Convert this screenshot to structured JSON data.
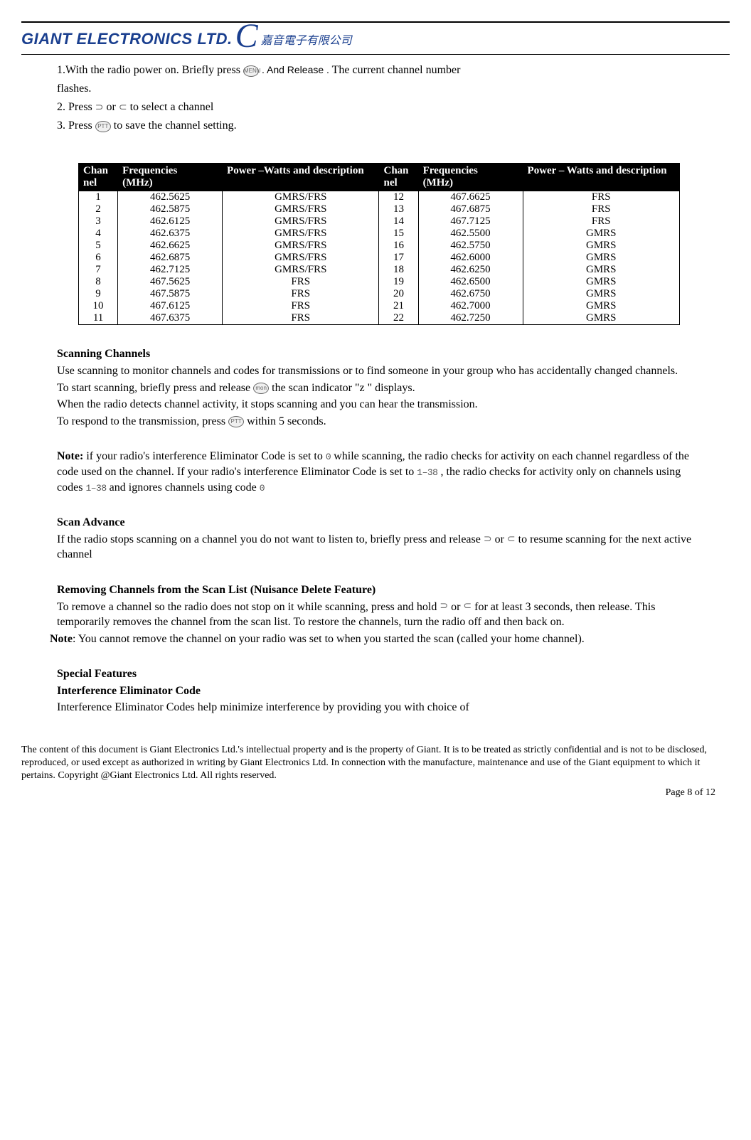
{
  "header": {
    "company_en": "GIANT ELECTRONICS LTD.",
    "company_zh": "嘉音電子有限公司"
  },
  "instructions": {
    "line1_a": "1.With the radio power on. Briefly press ",
    "line1_b": ". And Release .",
    "line1_c": "The current channel number",
    "line1_d": "flashes.",
    "line2_a": "2. Press ",
    "line2_b": "or ",
    "line2_c": " to select a channel",
    "line3_a": "3. Press ",
    "line3_b": " to save the channel setting.",
    "icon_menu": "MENU",
    "icon_ptt": "PTT"
  },
  "table": {
    "headers": {
      "channel": "Chan\nnel",
      "freq": "Frequencies\n(MHz)",
      "power": "Power –Watts and description",
      "channel2": "Chan\nnel",
      "freq2": "Frequencies\n(MHz)",
      "power2": "Power – Watts and description"
    },
    "rows": [
      {
        "c1": "1",
        "f1": "462.5625",
        "p1": "GMRS/FRS",
        "c2": "12",
        "f2": "467.6625",
        "p2": "FRS"
      },
      {
        "c1": "2",
        "f1": "462.5875",
        "p1": "GMRS/FRS",
        "c2": "13",
        "f2": "467.6875",
        "p2": "FRS"
      },
      {
        "c1": "3",
        "f1": "462.6125",
        "p1": "GMRS/FRS",
        "c2": "14",
        "f2": "467.7125",
        "p2": "FRS"
      },
      {
        "c1": "4",
        "f1": "462.6375",
        "p1": "GMRS/FRS",
        "c2": "15",
        "f2": "462.5500",
        "p2": "GMRS"
      },
      {
        "c1": "5",
        "f1": "462.6625",
        "p1": "GMRS/FRS",
        "c2": "16",
        "f2": "462.5750",
        "p2": "GMRS"
      },
      {
        "c1": "6",
        "f1": "462.6875",
        "p1": "GMRS/FRS",
        "c2": "17",
        "f2": "462.6000",
        "p2": "GMRS"
      },
      {
        "c1": "7",
        "f1": "462.7125",
        "p1": "GMRS/FRS",
        "c2": "18",
        "f2": "462.6250",
        "p2": "GMRS"
      },
      {
        "c1": "8",
        "f1": "467.5625",
        "p1": "FRS",
        "c2": "19",
        "f2": "462.6500",
        "p2": "GMRS"
      },
      {
        "c1": "9",
        "f1": "467.5875",
        "p1": "FRS",
        "c2": "20",
        "f2": "462.6750",
        "p2": "GMRS"
      },
      {
        "c1": "10",
        "f1": "467.6125",
        "p1": "FRS",
        "c2": "21",
        "f2": "462.7000",
        "p2": "GMRS"
      },
      {
        "c1": "11",
        "f1": "467.6375",
        "p1": "FRS",
        "c2": "22",
        "f2": "462.7250",
        "p2": "GMRS"
      }
    ]
  },
  "scanning": {
    "title": "Scanning Channels",
    "p1": "Use scanning to monitor channels and codes for transmissions or to find someone in your group who has accidentally changed channels.",
    "p2a": "To start scanning, briefly press and release ",
    "p2b": " the scan indicator \"z \" displays.",
    "p3": "When the radio detects channel activity, it stops scanning and you can hear the transmission.",
    "p4a": "To respond to the transmission, press",
    "p4b": " within 5 seconds.",
    "icon_mon": "mon",
    "icon_ptt": "PTT"
  },
  "note1": {
    "label": "Note:",
    "p1a": " if your radio's interference Eliminator Code is set to",
    "p1b": " while scanning, the radio checks for activity on each channel regardless of the code used on the channel. If your radio's interference Eliminator Code is set to ",
    "p1c": ", the radio checks for activity only on channels using codes ",
    "p1d": " and ignores channels using code ",
    "seg1": "0",
    "seg2": "1–38",
    "seg3": "1–38",
    "seg4": "0"
  },
  "scanadvance": {
    "title": "Scan Advance",
    "p1a": "If the radio stops scanning on a channel you do not want to listen to, briefly press and release ",
    "p1b": "or ",
    "p1c": " to resume scanning for the next active channel"
  },
  "removing": {
    "title": "Removing Channels from the Scan List (Nuisance Delete Feature)",
    "p1a": "To remove a channel so the radio does not stop on it while scanning, press and hold ",
    "p1b": "or ",
    "p1c": " for at least 3 seconds, then release. This temporarily removes the channel from the scan list. To restore the channels, turn the radio off and then back on.",
    "note_label": "Note",
    "note_text": ": You cannot remove the channel on your radio was set to when you started the scan (called your home channel)."
  },
  "special": {
    "title1": "Special Features",
    "title2": "Interference Eliminator Code",
    "p1": "Interference Eliminator Codes help minimize interference by providing you with choice of"
  },
  "footer": {
    "text": "The content of this document is Giant Electronics Ltd.'s intellectual property and is the property of Giant.  It is to be treated as strictly confidential and is not to be disclosed, reproduced, or used except as authorized in writing by Giant Electronics Ltd. In connection with the manufacture, maintenance and use of the Giant equipment to which it pertains. Copyright @Giant Electronics Ltd. All rights reserved.",
    "page": "Page 8 of 12"
  }
}
